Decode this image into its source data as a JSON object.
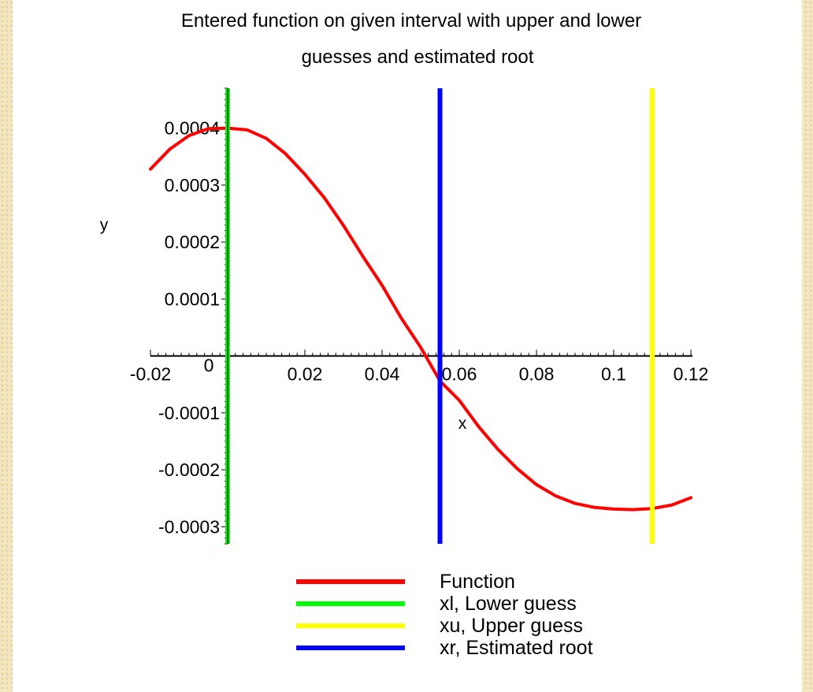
{
  "chart_data": {
    "type": "line",
    "title_lines": [
      "Entered function on given interval with upper and lower",
      "guesses and estimated root"
    ],
    "xlabel": "x",
    "ylabel": "y",
    "xlim": [
      -0.02,
      0.12
    ],
    "ylim": [
      -0.00033,
      0.00047
    ],
    "x_ticks": [
      {
        "value": -0.02,
        "label": "-0.02"
      },
      {
        "value": 0,
        "label": "0"
      },
      {
        "value": 0.02,
        "label": "0.02"
      },
      {
        "value": 0.04,
        "label": "0.04"
      },
      {
        "value": 0.06,
        "label": "0.06"
      },
      {
        "value": 0.08,
        "label": "0.08"
      },
      {
        "value": 0.1,
        "label": "0.1"
      },
      {
        "value": 0.12,
        "label": "0.12"
      }
    ],
    "y_ticks": [
      {
        "value": 0.0004,
        "label": "0.0004"
      },
      {
        "value": 0.0003,
        "label": "0.0003"
      },
      {
        "value": 0.0002,
        "label": "0.0002"
      },
      {
        "value": 0.0001,
        "label": "0.0001"
      },
      {
        "value": -0.0001,
        "label": "-0.0001"
      },
      {
        "value": -0.0002,
        "label": "-0.0002"
      },
      {
        "value": -0.0003,
        "label": "-0.0003"
      }
    ],
    "series": [
      {
        "name": "Function",
        "color": "#ff0000",
        "x": [
          -0.02,
          -0.015,
          -0.01,
          -0.005,
          0,
          0.005,
          0.01,
          0.015,
          0.02,
          0.025,
          0.03,
          0.035,
          0.04,
          0.045,
          0.05,
          0.055,
          0.06,
          0.065,
          0.07,
          0.075,
          0.08,
          0.085,
          0.09,
          0.095,
          0.1,
          0.105,
          0.11,
          0.115,
          0.12
        ],
        "y": [
          0.000328,
          0.000363,
          0.000387,
          0.000399,
          0.0004,
          0.000397,
          0.000382,
          0.000355,
          0.000319,
          0.000278,
          0.000229,
          0.000175,
          0.000124,
          6.6e-05,
          1.5e-05,
          -4.4e-05,
          -7.8e-05,
          -0.000124,
          -0.000164,
          -0.000198,
          -0.000226,
          -0.000246,
          -0.000259,
          -0.000266,
          -0.000269,
          -0.00027,
          -0.000268,
          -0.000262,
          -0.000249
        ]
      },
      {
        "name": "xl, Lower guess",
        "color": "#00ff00",
        "type": "vline",
        "x": 0
      },
      {
        "name": "xu, Upper guess",
        "color": "#ffff00",
        "type": "vline",
        "x": 0.11
      },
      {
        "name": "xr, Estimated root",
        "color": "#0000ff",
        "type": "vline",
        "x": 0.055
      }
    ],
    "legend_placement": "bottom",
    "grid": false
  }
}
